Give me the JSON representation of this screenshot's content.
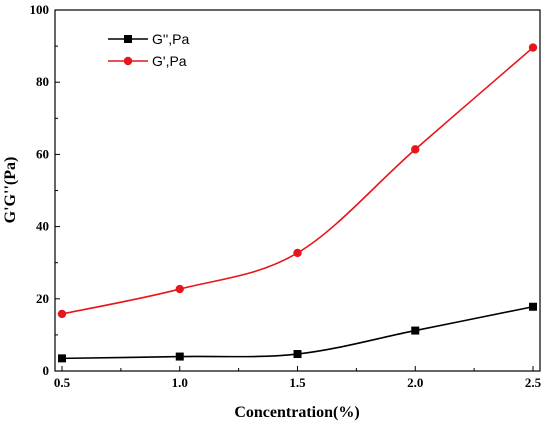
{
  "chart_data": {
    "type": "line",
    "xlabel": "Concentration(%)",
    "ylabel": "G'G''(Pa)",
    "x": [
      0.5,
      1.0,
      1.5,
      2.0,
      2.5
    ],
    "xlim": [
      0.5,
      2.5
    ],
    "ylim": [
      0,
      100
    ],
    "x_ticks": [
      "0.5",
      "1.0",
      "1.5",
      "2.0",
      "2.5"
    ],
    "y_ticks": [
      "0",
      "20",
      "40",
      "60",
      "80",
      "100"
    ],
    "x_tick_values": [
      0.5,
      1.0,
      1.5,
      2.0,
      2.5
    ],
    "y_tick_values": [
      0,
      20,
      40,
      60,
      80,
      100
    ],
    "grid": false,
    "legend_position": "top-left",
    "series": [
      {
        "name": "G'',Pa",
        "color": "#000000",
        "marker": "square",
        "values": [
          3.5,
          4.0,
          4.7,
          11.2,
          17.8
        ]
      },
      {
        "name": "G',Pa",
        "color": "#e8151b",
        "marker": "circle",
        "values": [
          15.8,
          22.7,
          32.7,
          61.4,
          89.6
        ]
      }
    ]
  }
}
